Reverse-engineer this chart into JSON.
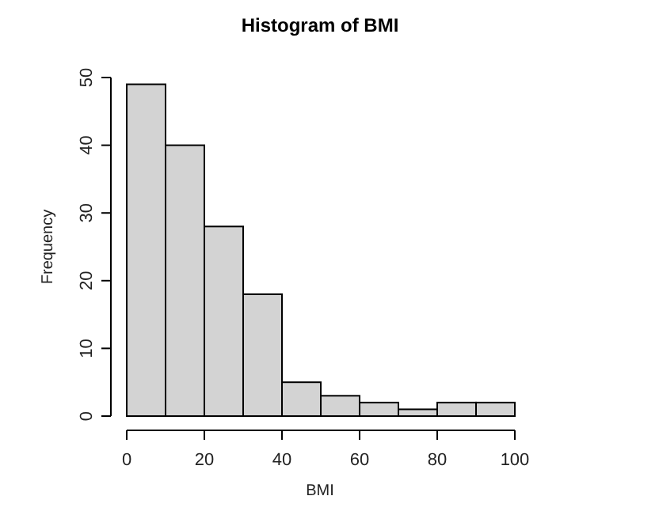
{
  "chart_data": {
    "type": "histogram",
    "title": "Histogram of BMI",
    "xlabel": "BMI",
    "ylabel": "Frequency",
    "bins": [
      0,
      10,
      20,
      30,
      40,
      50,
      60,
      70,
      80,
      90,
      100
    ],
    "values": [
      49,
      40,
      28,
      18,
      5,
      3,
      2,
      1,
      2,
      2
    ],
    "color": "#d3d3d3",
    "xlim": [
      0,
      100
    ],
    "xticks": [
      0,
      20,
      40,
      60,
      80,
      100
    ],
    "ylim": [
      0,
      50
    ],
    "yticks": [
      0,
      10,
      20,
      30,
      40,
      50
    ]
  }
}
